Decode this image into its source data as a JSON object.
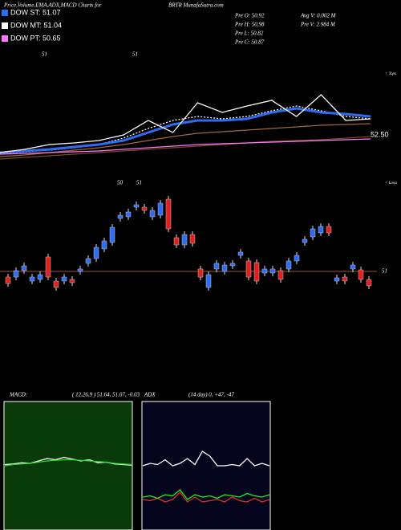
{
  "header": {
    "title": "Price,Volume,EMA,ADX,MACD Charts for",
    "site": "BRTR MunafaSutra.com"
  },
  "legend": [
    {
      "label": "DOW ST: 51.07",
      "color": "#2f6cf6"
    },
    {
      "label": "DOW MT: 51.04",
      "color": "#ffffff"
    },
    {
      "label": "DOW PT: 50.65",
      "color": "#ff77ff"
    }
  ],
  "stats": [
    "Pre  O: 50.92",
    "Pre  H: 50.98",
    "Pre  L: 50.82",
    "Pre  C: 50.87"
  ],
  "stats2": [
    "Avg V: 0.002  M",
    "Pre  V: 2.984  M"
  ],
  "chart_data": [
    {
      "type": "line",
      "annotations": [
        "51",
        "51",
        "< Tops"
      ],
      "ylim": [
        52.0,
        53.2
      ],
      "yticks": [
        {
          "value": 52.5,
          "label": "52.50"
        }
      ],
      "series": [
        {
          "color": "#7a4a1e",
          "values": [
            52.2,
            52.22,
            52.24,
            52.26,
            52.28,
            52.3,
            52.32,
            52.34,
            52.36,
            52.38,
            52.4,
            52.42,
            52.43,
            52.44,
            52.46,
            52.48
          ]
        },
        {
          "color": "#a0683a",
          "values": [
            52.23,
            52.25,
            52.28,
            52.31,
            52.34,
            52.38,
            52.43,
            52.48,
            52.52,
            52.54,
            52.56,
            52.58,
            52.6,
            52.62,
            52.63,
            52.64
          ]
        },
        {
          "color": "#ff77ff",
          "values": [
            52.26,
            52.27,
            52.28,
            52.29,
            52.3,
            52.32,
            52.34,
            52.36,
            52.38,
            52.39,
            52.4,
            52.41,
            52.42,
            52.43,
            52.44,
            52.45
          ]
        },
        {
          "color": "#ffffff",
          "dash": true,
          "values": [
            52.27,
            52.29,
            52.31,
            52.34,
            52.38,
            52.46,
            52.58,
            52.68,
            52.73,
            52.7,
            52.73,
            52.8,
            52.86,
            52.8,
            52.73,
            52.7
          ]
        },
        {
          "color": "#2f6cf6",
          "values": [
            52.28,
            52.3,
            52.32,
            52.35,
            52.38,
            52.43,
            52.53,
            52.63,
            52.68,
            52.68,
            52.7,
            52.78,
            52.83,
            52.78,
            52.76,
            52.73
          ]
        },
        {
          "color": "#ffffff",
          "values": [
            52.28,
            52.32,
            52.38,
            52.4,
            52.43,
            52.5,
            52.68,
            52.53,
            52.9,
            52.78,
            52.86,
            52.93,
            52.73,
            53.0,
            52.68,
            52.7
          ]
        }
      ]
    },
    {
      "type": "candlestick",
      "annotations": [
        "50",
        "51",
        "< Lows"
      ],
      "ylim": [
        50.58,
        52.18
      ],
      "yticks": [
        51
      ],
      "up_color": "#2f6cf6",
      "down_color": "#e02020",
      "open": [
        50.93,
        50.93,
        51.01,
        50.88,
        50.9,
        51.18,
        50.88,
        50.88,
        50.9,
        51.0,
        51.1,
        51.16,
        51.28,
        51.36,
        51.66,
        51.68,
        51.8,
        51.8,
        51.68,
        51.7,
        51.9,
        51.42,
        51.33,
        51.46,
        51.03,
        50.8,
        51.03,
        51.0,
        51.07,
        51.2,
        51.13,
        51.11,
        50.98,
        50.98,
        51.01,
        51.03,
        51.13,
        51.36,
        51.43,
        51.48,
        51.56,
        50.88,
        50.93,
        51.03,
        51.02,
        50.9
      ],
      "high": [
        50.97,
        51.05,
        51.11,
        50.97,
        51.0,
        51.22,
        50.92,
        50.97,
        50.94,
        51.07,
        51.2,
        51.34,
        51.42,
        51.59,
        51.74,
        51.78,
        51.87,
        51.84,
        51.8,
        51.89,
        51.94,
        51.46,
        51.5,
        51.5,
        51.07,
        51.0,
        51.14,
        51.12,
        51.14,
        51.28,
        51.17,
        51.15,
        51.07,
        51.07,
        51.05,
        51.17,
        51.24,
        51.44,
        51.57,
        51.6,
        51.6,
        50.96,
        50.97,
        51.12,
        51.06,
        50.94
      ],
      "low": [
        50.81,
        50.89,
        50.97,
        50.84,
        50.86,
        50.89,
        50.76,
        50.84,
        50.82,
        50.96,
        51.06,
        51.12,
        51.24,
        51.32,
        51.62,
        51.64,
        51.76,
        51.72,
        51.64,
        51.66,
        51.49,
        51.29,
        51.29,
        51.31,
        50.89,
        50.76,
        50.99,
        50.96,
        51.03,
        51.16,
        50.89,
        50.84,
        50.94,
        50.94,
        50.86,
        50.99,
        51.09,
        51.32,
        51.39,
        51.44,
        51.44,
        50.84,
        50.84,
        50.99,
        50.86,
        50.78
      ],
      "close": [
        50.85,
        51.01,
        51.07,
        50.93,
        50.96,
        50.93,
        50.8,
        50.93,
        50.86,
        51.03,
        51.16,
        51.3,
        51.38,
        51.55,
        51.7,
        51.74,
        51.83,
        51.76,
        51.76,
        51.85,
        51.53,
        51.33,
        51.46,
        51.35,
        50.93,
        50.96,
        51.1,
        51.08,
        51.1,
        51.24,
        50.93,
        50.88,
        51.03,
        51.03,
        50.9,
        51.13,
        51.2,
        51.4,
        51.53,
        51.56,
        51.48,
        50.92,
        50.88,
        51.08,
        50.9,
        50.82
      ]
    },
    {
      "type": "macd",
      "title": "MACD:",
      "subtitle": "( 12,26,9 ) 51.64, 51.07, -0.03",
      "ylim": [
        -1,
        1
      ],
      "series": [
        {
          "color": "#ffffff",
          "values": [
            0.02,
            0.03,
            0.05,
            0.04,
            0.08,
            0.12,
            0.1,
            0.14,
            0.11,
            0.08,
            0.1,
            0.05,
            0.06,
            0.03,
            0.02,
            0.01
          ]
        },
        {
          "color": "#22dd22",
          "values": [
            0.0,
            0.02,
            0.03,
            0.04,
            0.06,
            0.08,
            0.09,
            0.1,
            0.1,
            0.09,
            0.08,
            0.07,
            0.06,
            0.04,
            0.03,
            0.02
          ]
        }
      ]
    },
    {
      "type": "adx",
      "title": "ADX",
      "subtitle": "(14 day) 0, +47, -47",
      "ylim": [
        0,
        100
      ],
      "series": [
        {
          "color": "#ffffff",
          "values": [
            50,
            52,
            51,
            55,
            50,
            52,
            56,
            51,
            62,
            58,
            50,
            50,
            51,
            50,
            56,
            50,
            52,
            50
          ]
        },
        {
          "color": "#e03020",
          "values": [
            22,
            21,
            23,
            20,
            22,
            28,
            20,
            24,
            20,
            21,
            22,
            20,
            24,
            21,
            20,
            23,
            20,
            22
          ]
        },
        {
          "color": "#22ee22",
          "values": [
            24,
            25,
            23,
            26,
            25,
            30,
            22,
            26,
            24,
            25,
            23,
            26,
            25,
            24,
            27,
            25,
            24,
            26
          ]
        }
      ]
    }
  ]
}
